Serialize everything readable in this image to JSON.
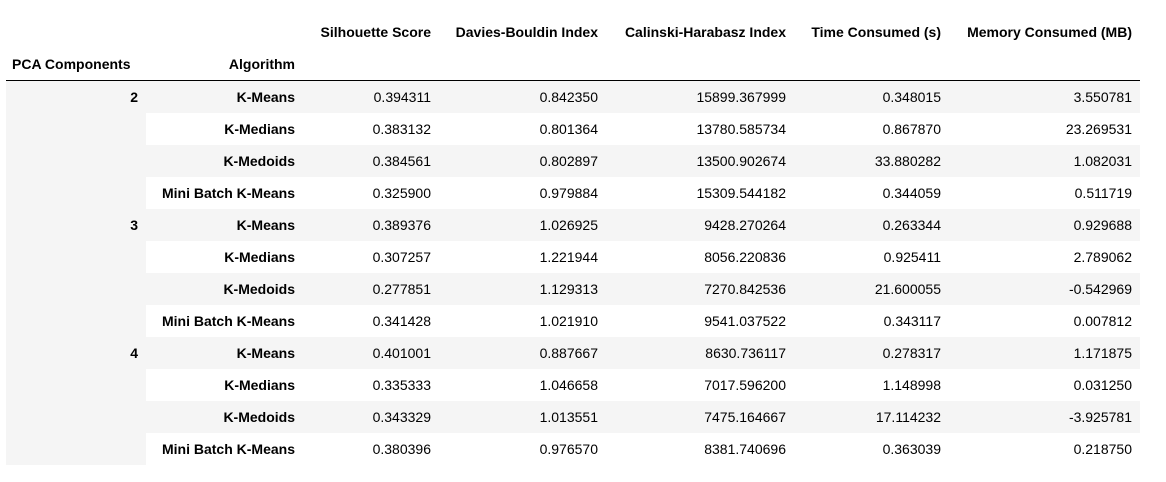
{
  "table": {
    "columns": [
      "Silhouette Score",
      "Davies-Bouldin Index",
      "Calinski-Harabasz Index",
      "Time Consumed (s)",
      "Memory Consumed (MB)"
    ],
    "index_names": [
      "PCA Components",
      "Algorithm"
    ],
    "groups": [
      {
        "pca": "2",
        "rows": [
          {
            "algorithm": "K-Means",
            "values": [
              "0.394311",
              "0.842350",
              "15899.367999",
              "0.348015",
              "3.550781"
            ]
          },
          {
            "algorithm": "K-Medians",
            "values": [
              "0.383132",
              "0.801364",
              "13780.585734",
              "0.867870",
              "23.269531"
            ]
          },
          {
            "algorithm": "K-Medoids",
            "values": [
              "0.384561",
              "0.802897",
              "13500.902674",
              "33.880282",
              "1.082031"
            ]
          },
          {
            "algorithm": "Mini Batch K-Means",
            "values": [
              "0.325900",
              "0.979884",
              "15309.544182",
              "0.344059",
              "0.511719"
            ]
          }
        ]
      },
      {
        "pca": "3",
        "rows": [
          {
            "algorithm": "K-Means",
            "values": [
              "0.389376",
              "1.026925",
              "9428.270264",
              "0.263344",
              "0.929688"
            ]
          },
          {
            "algorithm": "K-Medians",
            "values": [
              "0.307257",
              "1.221944",
              "8056.220836",
              "0.925411",
              "2.789062"
            ]
          },
          {
            "algorithm": "K-Medoids",
            "values": [
              "0.277851",
              "1.129313",
              "7270.842536",
              "21.600055",
              "-0.542969"
            ]
          },
          {
            "algorithm": "Mini Batch K-Means",
            "values": [
              "0.341428",
              "1.021910",
              "9541.037522",
              "0.343117",
              "0.007812"
            ]
          }
        ]
      },
      {
        "pca": "4",
        "rows": [
          {
            "algorithm": "K-Means",
            "values": [
              "0.401001",
              "0.887667",
              "8630.736117",
              "0.278317",
              "1.171875"
            ]
          },
          {
            "algorithm": "K-Medians",
            "values": [
              "0.335333",
              "1.046658",
              "7017.596200",
              "1.148998",
              "0.031250"
            ]
          },
          {
            "algorithm": "K-Medoids",
            "values": [
              "0.343329",
              "1.013551",
              "7475.164667",
              "17.114232",
              "-3.925781"
            ]
          },
          {
            "algorithm": "Mini Batch K-Means",
            "values": [
              "0.380396",
              "0.976570",
              "8381.740696",
              "0.363039",
              "0.218750"
            ]
          }
        ]
      }
    ],
    "colors": {
      "stripe": "#f5f5f5",
      "header_rule": "#000000"
    }
  }
}
